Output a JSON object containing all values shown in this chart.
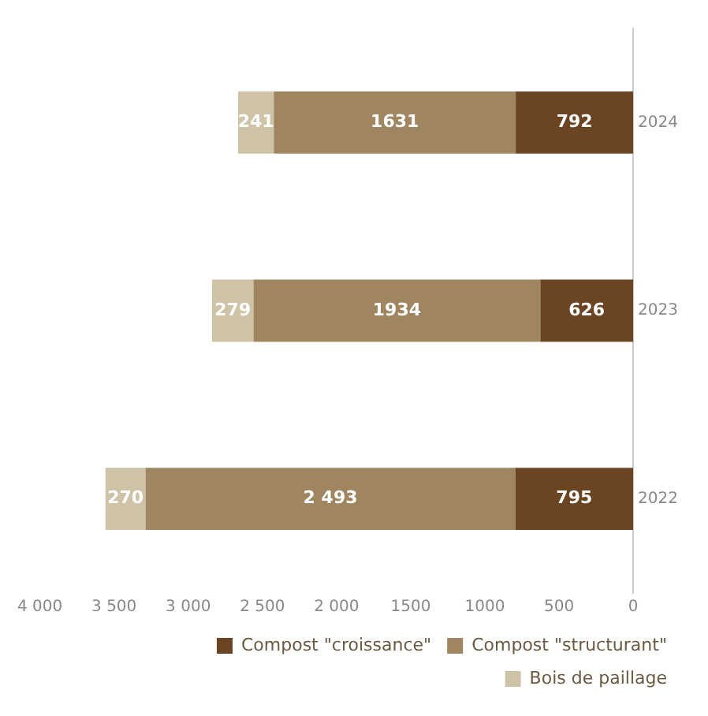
{
  "chart_data": {
    "type": "bar",
    "orientation": "horizontal",
    "stacked": true,
    "categories": [
      "2024",
      "2023",
      "2022"
    ],
    "series": [
      {
        "name": "Compost \"croissance\"",
        "color": "#6b4423",
        "values": [
          792,
          626,
          795
        ],
        "value_labels": [
          "792",
          "626",
          "795"
        ]
      },
      {
        "name": "Compost \"structurant\"",
        "color": "#a08660",
        "values": [
          1631,
          1934,
          2493
        ],
        "value_labels": [
          "1631",
          "1934",
          "2 493"
        ]
      },
      {
        "name": "Bois de paillage",
        "color": "#cfc3a7",
        "values": [
          241,
          279,
          270
        ],
        "value_labels": [
          "241",
          "279",
          "270"
        ]
      }
    ],
    "xlim": [
      4000,
      0
    ],
    "xticks": [
      {
        "value": 4000,
        "label": "4 000"
      },
      {
        "value": 3500,
        "label": "3 500"
      },
      {
        "value": 3000,
        "label": "3 000"
      },
      {
        "value": 2500,
        "label": "2 500"
      },
      {
        "value": 2000,
        "label": "2 000"
      },
      1500,
      1000,
      500,
      0
    ],
    "grid": false,
    "legend": "bottom right"
  }
}
